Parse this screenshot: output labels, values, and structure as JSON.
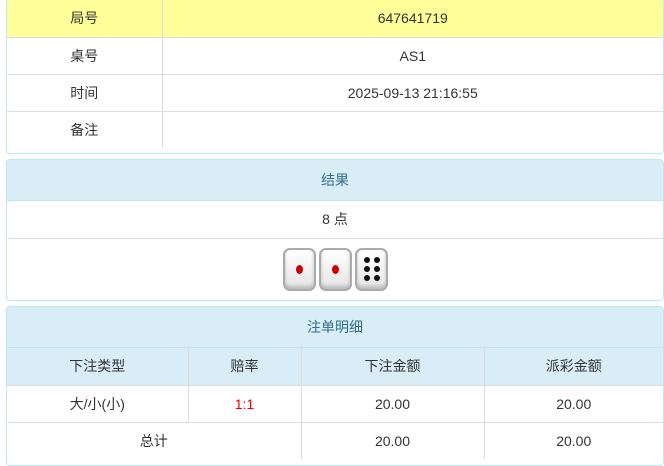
{
  "info": {
    "rows": [
      {
        "label": "局号",
        "value": "647641719"
      },
      {
        "label": "桌号",
        "value": "AS1"
      },
      {
        "label": "时间",
        "value": "2025-09-13 21:16:55"
      },
      {
        "label": "备注",
        "value": ""
      }
    ]
  },
  "result": {
    "title": "结果",
    "points": "8 点",
    "dice": [
      1,
      1,
      6
    ]
  },
  "bets": {
    "title": "注单明细",
    "headers": [
      "下注类型",
      "赔率",
      "下注金额",
      "派彩金额"
    ],
    "rows": [
      {
        "type": "大/小(小)",
        "odds": "1:1",
        "amount": "20.00",
        "payout": "20.00"
      }
    ],
    "total": {
      "label": "总计",
      "amount": "20.00",
      "payout": "20.00"
    }
  },
  "colors": {
    "highlight": "#ffff99",
    "header_bg": "#d9edf7",
    "odds": "#ee0000"
  }
}
